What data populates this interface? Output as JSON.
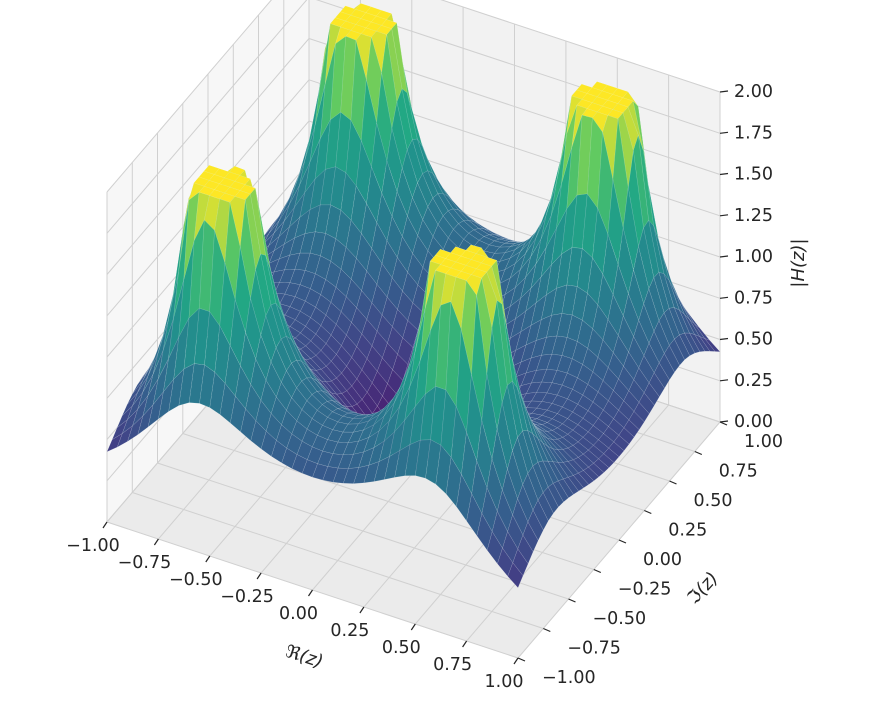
{
  "chart_data": {
    "type": "surface",
    "title": "",
    "xlabel": "ℜ(z)",
    "ylabel": "ℑ(z)",
    "zlabel": "|H(z)|",
    "xlim": [
      -1.0,
      1.0
    ],
    "ylim": [
      -1.0,
      1.0
    ],
    "zlim": [
      0.0,
      2.0
    ],
    "x_ticks": [
      "−1.00",
      "−0.75",
      "−0.50",
      "−0.25",
      "0.00",
      "0.25",
      "0.50",
      "0.75",
      "1.00"
    ],
    "y_ticks": [
      "−1.00",
      "−0.75",
      "−0.50",
      "−0.25",
      "0.00",
      "0.25",
      "0.50",
      "0.75",
      "1.00"
    ],
    "z_ticks": [
      "0.00",
      "0.25",
      "0.50",
      "0.75",
      "1.00",
      "1.25",
      "1.50",
      "1.75",
      "2.00"
    ],
    "x_tick_values": [
      -1.0,
      -0.75,
      -0.5,
      -0.25,
      0.0,
      0.25,
      0.5,
      0.75,
      1.0
    ],
    "y_tick_values": [
      -1.0,
      -0.75,
      -0.5,
      -0.25,
      0.0,
      0.25,
      0.5,
      0.75,
      1.0
    ],
    "z_tick_values": [
      0.0,
      0.25,
      0.5,
      0.75,
      1.0,
      1.25,
      1.5,
      1.75,
      2.0
    ],
    "colormap": "viridis",
    "grid": true,
    "grid_points": 41,
    "poles": [
      {
        "re": -0.6,
        "im": 0.7
      },
      {
        "re": 0.6,
        "im": 0.7
      },
      {
        "re": 0.6,
        "im": -0.7
      },
      {
        "re": -0.6,
        "im": -0.7
      }
    ],
    "zeros": [
      {
        "re": 0.0,
        "im": 0.0
      }
    ],
    "surface_clip": 2.0
  }
}
